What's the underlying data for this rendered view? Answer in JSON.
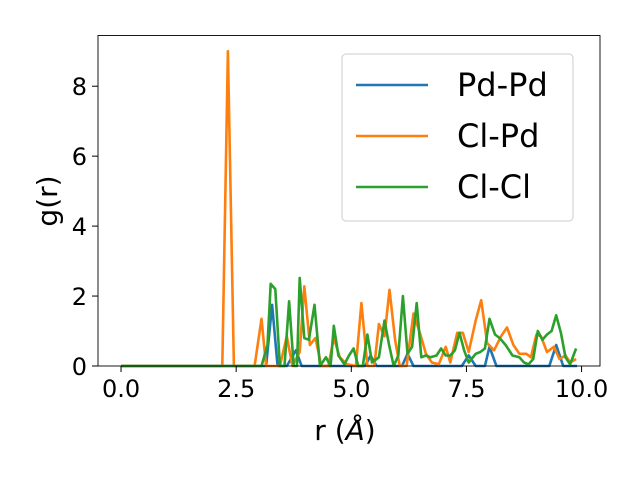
{
  "chart_data": {
    "type": "line",
    "xlabel": "r (Å)",
    "xlabel_parts": [
      "r (",
      "Å",
      ")"
    ],
    "ylabel": "g(r)",
    "xlim": [
      -0.5,
      10.4
    ],
    "ylim": [
      0,
      9.45
    ],
    "xticks": [
      0.0,
      2.5,
      5.0,
      7.5,
      10.0
    ],
    "xtick_labels": [
      "0.0",
      "2.5",
      "5.0",
      "7.5",
      "10.0"
    ],
    "yticks": [
      0,
      2,
      4,
      6,
      8
    ],
    "ytick_labels": [
      "0",
      "2",
      "4",
      "6",
      "8"
    ],
    "grid": false,
    "legend_position": "top-right",
    "series": [
      {
        "name": "Pd-Pd",
        "color": "#1f77b4",
        "points": [
          [
            0.0,
            0
          ],
          [
            3.15,
            0
          ],
          [
            3.28,
            1.75
          ],
          [
            3.4,
            0
          ],
          [
            3.6,
            0
          ],
          [
            3.8,
            0.45
          ],
          [
            3.92,
            0
          ],
          [
            5.3,
            0
          ],
          [
            5.42,
            0.3
          ],
          [
            5.55,
            0
          ],
          [
            6.1,
            0
          ],
          [
            6.22,
            0.35
          ],
          [
            6.35,
            0
          ],
          [
            7.4,
            0
          ],
          [
            7.55,
            0.3
          ],
          [
            7.7,
            0
          ],
          [
            7.9,
            0
          ],
          [
            8.0,
            0.55
          ],
          [
            8.15,
            0
          ],
          [
            9.3,
            0
          ],
          [
            9.45,
            0.6
          ],
          [
            9.6,
            0
          ],
          [
            9.9,
            0
          ]
        ]
      },
      {
        "name": "Cl-Pd",
        "color": "#ff7f0e",
        "points": [
          [
            0.0,
            0
          ],
          [
            2.2,
            0
          ],
          [
            2.32,
            9.0
          ],
          [
            2.45,
            0
          ],
          [
            2.9,
            0
          ],
          [
            3.05,
            1.35
          ],
          [
            3.15,
            0
          ],
          [
            3.45,
            0
          ],
          [
            3.6,
            0.85
          ],
          [
            3.72,
            0
          ],
          [
            3.88,
            0.4
          ],
          [
            3.98,
            2.28
          ],
          [
            4.1,
            0.6
          ],
          [
            4.22,
            0.8
          ],
          [
            4.35,
            0
          ],
          [
            4.5,
            0
          ],
          [
            4.62,
            0.8
          ],
          [
            4.75,
            0.25
          ],
          [
            4.9,
            0.05
          ],
          [
            5.1,
            0
          ],
          [
            5.22,
            1.8
          ],
          [
            5.35,
            0
          ],
          [
            5.5,
            0
          ],
          [
            5.6,
            1.2
          ],
          [
            5.72,
            0.85
          ],
          [
            5.83,
            2.18
          ],
          [
            5.95,
            0.75
          ],
          [
            6.05,
            0
          ],
          [
            6.2,
            0
          ],
          [
            6.35,
            1.5
          ],
          [
            6.5,
            0.9
          ],
          [
            6.62,
            0.35
          ],
          [
            6.75,
            0.1
          ],
          [
            6.9,
            0.05
          ],
          [
            7.05,
            0.55
          ],
          [
            7.15,
            0.1
          ],
          [
            7.3,
            0.95
          ],
          [
            7.42,
            0.95
          ],
          [
            7.55,
            0.4
          ],
          [
            7.7,
            1.3
          ],
          [
            7.82,
            1.88
          ],
          [
            7.95,
            0.65
          ],
          [
            8.1,
            0.45
          ],
          [
            8.25,
            0.85
          ],
          [
            8.38,
            1.1
          ],
          [
            8.52,
            0.6
          ],
          [
            8.65,
            0.35
          ],
          [
            8.8,
            0.35
          ],
          [
            8.9,
            0.25
          ],
          [
            9.02,
            0.9
          ],
          [
            9.12,
            0.85
          ],
          [
            9.25,
            0.4
          ],
          [
            9.4,
            0.55
          ],
          [
            9.52,
            0.2
          ],
          [
            9.65,
            0.3
          ],
          [
            9.75,
            0.1
          ],
          [
            9.88,
            0.2
          ]
        ]
      },
      {
        "name": "Cl-Cl",
        "color": "#2ca02c",
        "points": [
          [
            0.0,
            0
          ],
          [
            3.05,
            0
          ],
          [
            3.18,
            0.6
          ],
          [
            3.25,
            2.35
          ],
          [
            3.35,
            2.2
          ],
          [
            3.45,
            0
          ],
          [
            3.55,
            0
          ],
          [
            3.65,
            1.85
          ],
          [
            3.75,
            0
          ],
          [
            3.82,
            0
          ],
          [
            3.88,
            2.52
          ],
          [
            3.98,
            0.8
          ],
          [
            4.08,
            0.75
          ],
          [
            4.2,
            1.75
          ],
          [
            4.32,
            0
          ],
          [
            4.45,
            0.25
          ],
          [
            4.55,
            0
          ],
          [
            4.62,
            1.15
          ],
          [
            4.72,
            0.3
          ],
          [
            4.85,
            0.05
          ],
          [
            4.95,
            0.3
          ],
          [
            5.05,
            0.5
          ],
          [
            5.15,
            0
          ],
          [
            5.25,
            0
          ],
          [
            5.35,
            0.9
          ],
          [
            5.45,
            0.1
          ],
          [
            5.6,
            0.25
          ],
          [
            5.72,
            1.3
          ],
          [
            5.82,
            0.6
          ],
          [
            5.92,
            0
          ],
          [
            6.02,
            0.3
          ],
          [
            6.12,
            2.0
          ],
          [
            6.22,
            0.35
          ],
          [
            6.32,
            0.55
          ],
          [
            6.42,
            1.8
          ],
          [
            6.52,
            0.25
          ],
          [
            6.62,
            0.3
          ],
          [
            6.72,
            0.25
          ],
          [
            6.85,
            0.3
          ],
          [
            6.95,
            0.5
          ],
          [
            7.05,
            0.3
          ],
          [
            7.15,
            0.3
          ],
          [
            7.25,
            0.45
          ],
          [
            7.35,
            0.95
          ],
          [
            7.45,
            0.45
          ],
          [
            7.55,
            0.1
          ],
          [
            7.7,
            0.35
          ],
          [
            7.8,
            0.4
          ],
          [
            7.9,
            0.5
          ],
          [
            8.0,
            1.35
          ],
          [
            8.12,
            0.9
          ],
          [
            8.22,
            0.8
          ],
          [
            8.35,
            0.6
          ],
          [
            8.5,
            0.3
          ],
          [
            8.65,
            0.25
          ],
          [
            8.75,
            0.1
          ],
          [
            8.85,
            0.05
          ],
          [
            8.95,
            0.2
          ],
          [
            9.05,
            1.0
          ],
          [
            9.15,
            0.75
          ],
          [
            9.25,
            0.9
          ],
          [
            9.35,
            1.0
          ],
          [
            9.45,
            1.45
          ],
          [
            9.55,
            0.95
          ],
          [
            9.65,
            0.25
          ],
          [
            9.75,
            0.05
          ],
          [
            9.88,
            0.5
          ]
        ]
      }
    ]
  }
}
